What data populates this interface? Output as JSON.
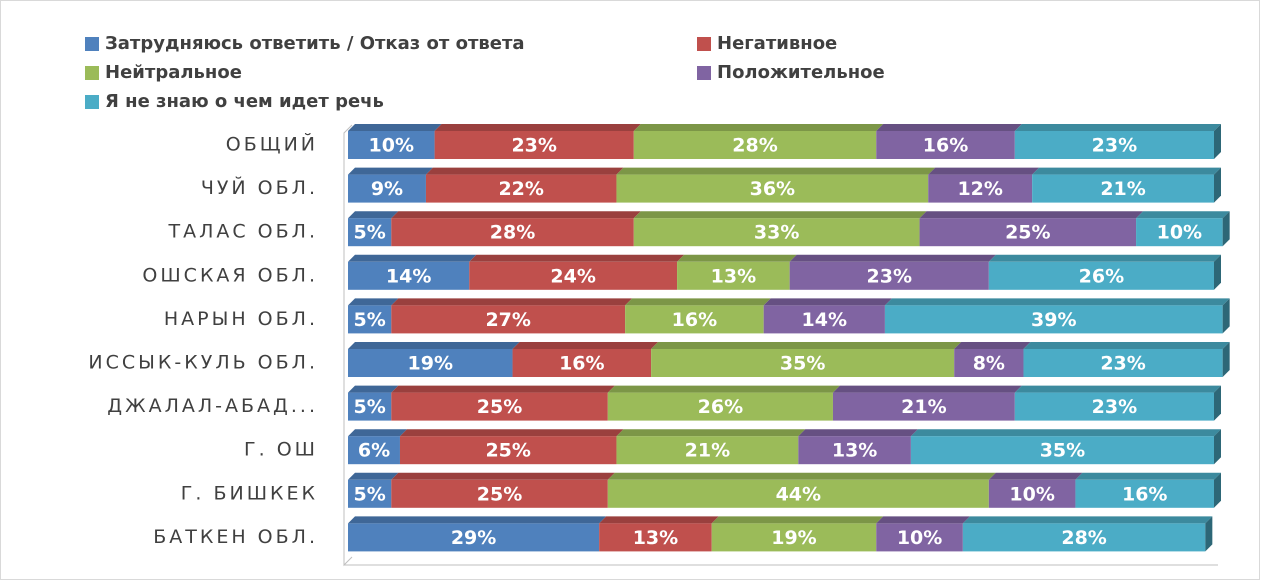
{
  "chart_data": {
    "type": "stacked_barh",
    "categories": [
      "ОБЩИЙ",
      "ЧУЙ ОБЛ.",
      "ТАЛАС ОБЛ.",
      "ОШСКАЯ ОБЛ.",
      "НАРЫН ОБЛ.",
      "ИССЫК-КУЛЬ ОБЛ.",
      "ДЖАЛАЛ-АБАД...",
      "Г. ОШ",
      "Г. БИШКЕК",
      "БАТКЕН ОБЛ."
    ],
    "xlim": [
      0,
      100
    ],
    "legend": "top",
    "series": [
      {
        "name": "Затрудняюсь ответить / Отказ от ответа",
        "color": "#4f81bd",
        "values": [
          10,
          9,
          5,
          14,
          5,
          19,
          5,
          6,
          5,
          29
        ],
        "value_labels": [
          "10%",
          "9%",
          "5%",
          "14%",
          "5%",
          "19%",
          "5%",
          "6%",
          "5%",
          "29%"
        ]
      },
      {
        "name": "Негативное",
        "color": "#c0504d",
        "values": [
          23,
          22,
          28,
          24,
          27,
          16,
          25,
          25,
          25,
          13
        ],
        "value_labels": [
          "23%",
          "22%",
          "28%",
          "24%",
          "27%",
          "16%",
          "25%",
          "25%",
          "25%",
          "13%"
        ]
      },
      {
        "name": "Нейтральное",
        "color": "#9bbb59",
        "values": [
          28,
          36,
          33,
          13,
          16,
          35,
          26,
          21,
          44,
          19
        ],
        "value_labels": [
          "28%",
          "36%",
          "33%",
          "13%",
          "16%",
          "35%",
          "26%",
          "21%",
          "44%",
          "19%"
        ]
      },
      {
        "name": "Положительное",
        "color": "#8064a2",
        "values": [
          16,
          12,
          25,
          23,
          14,
          8,
          21,
          13,
          10,
          10
        ],
        "value_labels": [
          "16%",
          "12%",
          "25%",
          "23%",
          "14%",
          "8%",
          "21%",
          "13%",
          "10%",
          "10%"
        ]
      },
      {
        "name": "Я не знаю о чем идет речь",
        "color": "#4bacc6",
        "values": [
          23,
          21,
          10,
          26,
          39,
          23,
          23,
          35,
          16,
          28
        ],
        "value_labels": [
          "23%",
          "21%",
          "10%",
          "26%",
          "39%",
          "23%",
          "23%",
          "35%",
          "16%",
          "28%"
        ]
      }
    ]
  }
}
